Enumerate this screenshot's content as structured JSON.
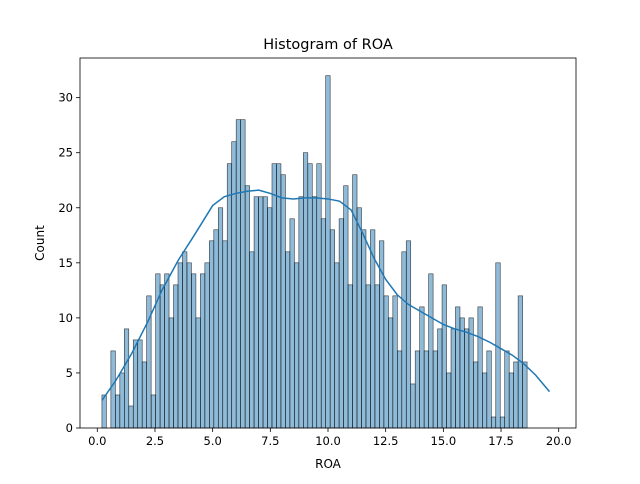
{
  "chart_data": {
    "type": "bar",
    "title": "Histogram of ROA",
    "xlabel": "ROA",
    "ylabel": "Count",
    "xlim": [
      -0.75,
      20.75
    ],
    "ylim": [
      0,
      33.6
    ],
    "x_ticks": [
      0.0,
      2.5,
      5.0,
      7.5,
      10.0,
      12.5,
      15.0,
      17.5,
      20.0
    ],
    "x_tick_labels": [
      "0.0",
      "2.5",
      "5.0",
      "7.5",
      "10.0",
      "12.5",
      "15.0",
      "17.5",
      "20.0"
    ],
    "y_ticks": [
      0,
      5,
      10,
      15,
      20,
      25,
      30
    ],
    "y_tick_labels": [
      "0",
      "5",
      "10",
      "15",
      "20",
      "25",
      "30"
    ],
    "grid": false,
    "bin_start": 0.2,
    "bin_width": 0.194,
    "counts": [
      3,
      0,
      7,
      3,
      5,
      9,
      2,
      8,
      8,
      6,
      12,
      3,
      14,
      13,
      14,
      10,
      13,
      15,
      16,
      15,
      14,
      10,
      14,
      15,
      17,
      18,
      20,
      17,
      24,
      26,
      28,
      28,
      22,
      16,
      21,
      21,
      21,
      20,
      24,
      24,
      23,
      16,
      19,
      15,
      21,
      25,
      24,
      21,
      24,
      19,
      32,
      18,
      15,
      19,
      22,
      13,
      23,
      20,
      18,
      13,
      18,
      13,
      17,
      12,
      10,
      12,
      7,
      16,
      17,
      4,
      7,
      11,
      7,
      14,
      7,
      9,
      13,
      5,
      9,
      11,
      10,
      9,
      10,
      6,
      11,
      5,
      7,
      1,
      15,
      1,
      7,
      5,
      6,
      12,
      6
    ],
    "kde": {
      "x": [
        0.2,
        0.8,
        1.5,
        2.2,
        2.8,
        3.5,
        4.2,
        5.0,
        5.5,
        6.0,
        6.5,
        7.0,
        7.5,
        8.0,
        8.5,
        9.0,
        9.5,
        10.0,
        10.5,
        11.0,
        11.5,
        12.0,
        12.5,
        13.0,
        13.5,
        14.0,
        14.5,
        15.0,
        15.5,
        16.0,
        16.5,
        17.0,
        17.5,
        18.0,
        18.5,
        19.0,
        19.6
      ],
      "y": [
        2.5,
        4.3,
        6.8,
        9.7,
        12.5,
        15.2,
        17.5,
        20.2,
        21.0,
        21.3,
        21.5,
        21.6,
        21.3,
        20.9,
        20.8,
        20.9,
        20.9,
        20.8,
        20.6,
        19.8,
        17.7,
        15.4,
        13.5,
        12.1,
        11.2,
        10.6,
        10.0,
        9.4,
        9.0,
        8.7,
        8.3,
        7.8,
        7.2,
        6.6,
        5.8,
        4.8,
        3.3
      ]
    },
    "bar_color": "#1f77b4",
    "kde_color": "#1f77b4"
  }
}
